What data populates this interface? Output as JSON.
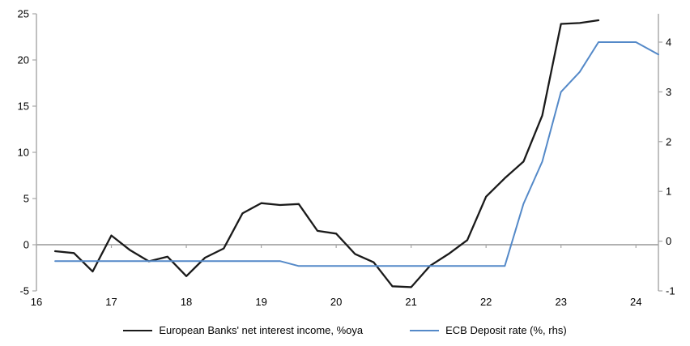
{
  "chart_data": {
    "type": "line",
    "title": "",
    "grid": "off",
    "legend_position": "bottom-center",
    "x_axis": {
      "min": 16,
      "max": 24.3,
      "ticks": [
        16,
        17,
        18,
        19,
        20,
        21,
        22,
        23,
        24
      ]
    },
    "left_axis": {
      "label": "",
      "min": -5,
      "max": 25,
      "ticks": [
        -5,
        0,
        5,
        10,
        15,
        20,
        25
      ]
    },
    "right_axis": {
      "label": "",
      "min": -1,
      "max": 4.57,
      "ticks": [
        -1,
        0,
        1,
        2,
        3,
        4
      ]
    },
    "axis_color": "#a6a6a6",
    "series": [
      {
        "name": "European Banks' net interest income, %oya",
        "color": "#1a1a1a",
        "axis": "left",
        "line_width": 2.3,
        "x": [
          16.25,
          16.5,
          16.75,
          17.0,
          17.25,
          17.5,
          17.75,
          18.0,
          18.25,
          18.5,
          18.75,
          19.0,
          19.25,
          19.5,
          19.75,
          20.0,
          20.25,
          20.5,
          20.75,
          21.0,
          21.25,
          21.5,
          21.75,
          22.0,
          22.25,
          22.5,
          22.75,
          23.0,
          23.25,
          23.5
        ],
        "y": [
          -0.7,
          -0.9,
          -2.9,
          1.0,
          -0.6,
          -1.8,
          -1.3,
          -3.4,
          -1.4,
          -0.4,
          3.4,
          4.5,
          4.3,
          4.4,
          1.5,
          1.2,
          -1.0,
          -1.9,
          -4.5,
          -4.6,
          -2.3,
          -1.0,
          0.5,
          5.2,
          7.2,
          9.0,
          14.0,
          23.9,
          24.0,
          24.3
        ]
      },
      {
        "name": "ECB Deposit rate (%, rhs)",
        "color": "#5489c8",
        "axis": "right",
        "line_width": 2,
        "x": [
          16.25,
          16.5,
          16.75,
          17.0,
          17.25,
          17.5,
          17.75,
          18.0,
          18.25,
          18.5,
          18.75,
          19.0,
          19.25,
          19.5,
          19.75,
          20.0,
          20.25,
          20.5,
          20.75,
          21.0,
          21.25,
          21.5,
          21.75,
          22.0,
          22.25,
          22.5,
          22.75,
          23.0,
          23.25,
          23.5,
          23.75,
          24.0,
          24.3
        ],
        "y": [
          -0.4,
          -0.4,
          -0.4,
          -0.4,
          -0.4,
          -0.4,
          -0.4,
          -0.4,
          -0.4,
          -0.4,
          -0.4,
          -0.4,
          -0.4,
          -0.5,
          -0.5,
          -0.5,
          -0.5,
          -0.5,
          -0.5,
          -0.5,
          -0.5,
          -0.5,
          -0.5,
          -0.5,
          -0.5,
          0.75,
          1.6,
          3.0,
          3.4,
          4.0,
          4.0,
          4.0,
          3.75
        ]
      }
    ]
  }
}
